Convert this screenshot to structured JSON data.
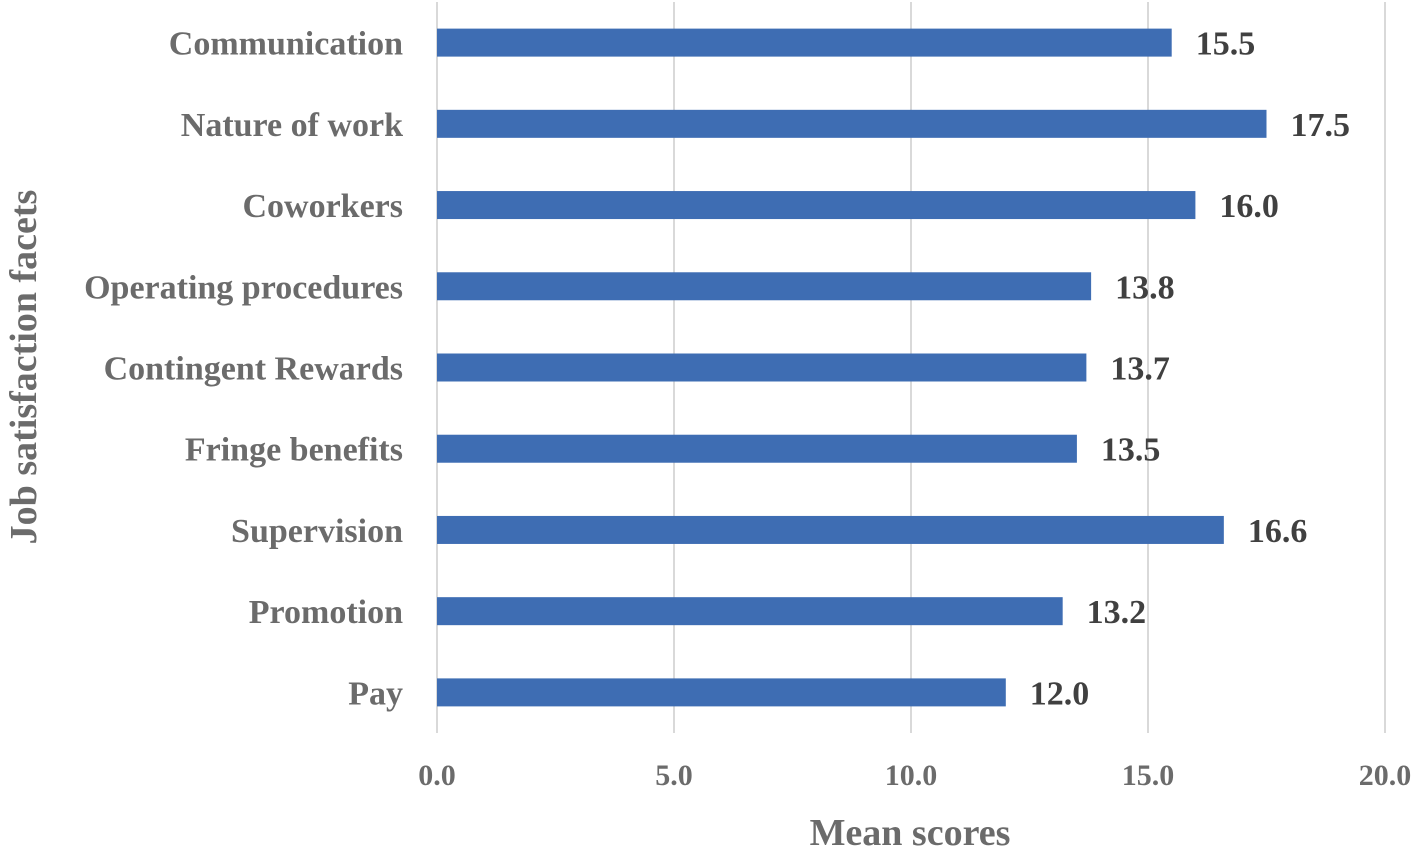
{
  "chart_data": {
    "type": "bar",
    "orientation": "horizontal",
    "categories": [
      "Communication",
      "Nature of work",
      "Coworkers",
      "Operating procedures",
      "Contingent Rewards ",
      "Fringe benefits",
      "Supervision",
      "Promotion",
      "Pay"
    ],
    "values": [
      15.5,
      17.5,
      16.0,
      13.8,
      13.7,
      13.5,
      16.6,
      13.2,
      12.0
    ],
    "value_labels": [
      "15.5",
      "17.5",
      "16.0",
      "13.8",
      "13.7",
      "13.5",
      "16.6",
      "13.2",
      "12.0"
    ],
    "xlabel": "Mean scores",
    "ylabel": "Job satisfaction facets",
    "xlim": [
      0,
      20
    ],
    "xticks": [
      0,
      5,
      10,
      15,
      20
    ],
    "xtick_labels": [
      "0.0",
      "5.0",
      "10.0",
      "15.0",
      "20.0"
    ],
    "grid": true,
    "bar_color": "#3e6db3",
    "grid_color": "#d9d9d9"
  }
}
